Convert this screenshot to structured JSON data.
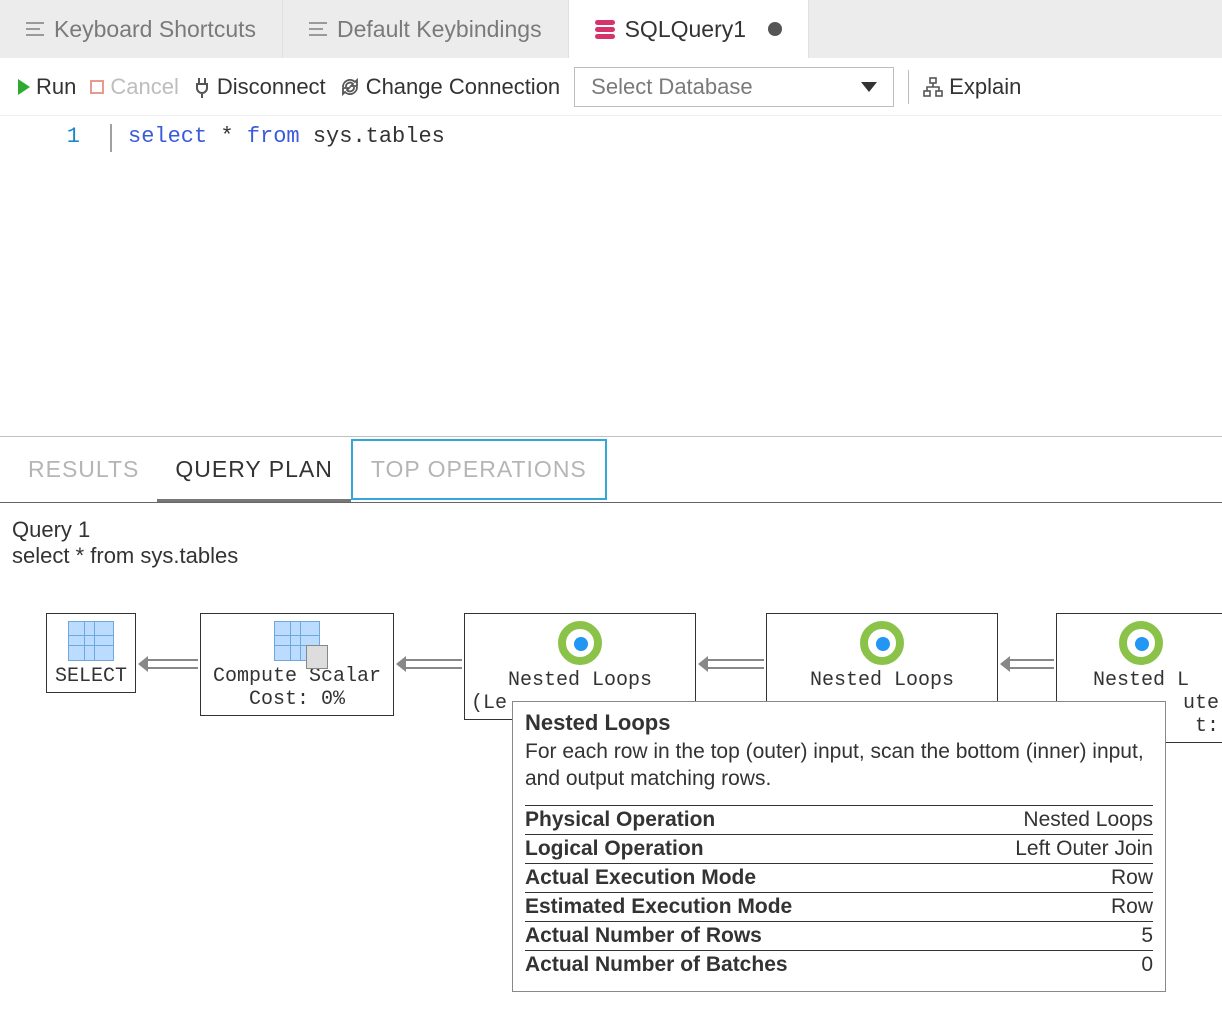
{
  "tabs": [
    {
      "label": "Keyboard Shortcuts",
      "active": false,
      "icon": "lines"
    },
    {
      "label": "Default Keybindings",
      "active": false,
      "icon": "lines"
    },
    {
      "label": "SQLQuery1",
      "active": true,
      "icon": "db",
      "dirty": true
    }
  ],
  "toolbar": {
    "run": "Run",
    "cancel": "Cancel",
    "disconnect": "Disconnect",
    "change_connection": "Change Connection",
    "db_placeholder": "Select Database",
    "explain": "Explain"
  },
  "editor": {
    "line_number": "1",
    "tokens": {
      "select": "select",
      "star": "*",
      "from": "from",
      "sys_tables": "sys.tables"
    }
  },
  "results": {
    "tabs": {
      "results": "RESULTS",
      "query_plan": "QUERY PLAN",
      "top_operations": "TOP OPERATIONS",
      "active": "query_plan",
      "focused": "top_operations"
    },
    "query_label": "Query 1",
    "query_text": "select * from sys.tables"
  },
  "plan": {
    "nodes": {
      "select": {
        "label": "SELECT"
      },
      "compute_scalar": {
        "label": "Compute Scalar",
        "cost": "Cost: 0%"
      },
      "nested1": {
        "label": "Nested Loops",
        "sub": "(Le"
      },
      "nested2": {
        "label": "Nested Loops"
      },
      "nested3": {
        "label": "Nested L",
        "sub": "ute",
        "sub2": "t:"
      }
    }
  },
  "tooltip": {
    "title": "Nested Loops",
    "description": "For each row in the top (outer) input, scan the bottom (inner) input, and output matching rows.",
    "rows": [
      {
        "label": "Physical Operation",
        "value": "Nested Loops"
      },
      {
        "label": "Logical Operation",
        "value": "Left Outer Join"
      },
      {
        "label": "Actual Execution Mode",
        "value": "Row"
      },
      {
        "label": "Estimated Execution Mode",
        "value": "Row"
      },
      {
        "label": "Actual Number of Rows",
        "value": "5"
      },
      {
        "label": "Actual Number of Batches",
        "value": "0"
      }
    ]
  },
  "colors": {
    "accent_pink": "#d6336c",
    "run_green": "#2eab2e",
    "focus_blue": "#31a8d8",
    "keyword_blue": "#3b5bdb",
    "line_num": "#1a88c9"
  }
}
